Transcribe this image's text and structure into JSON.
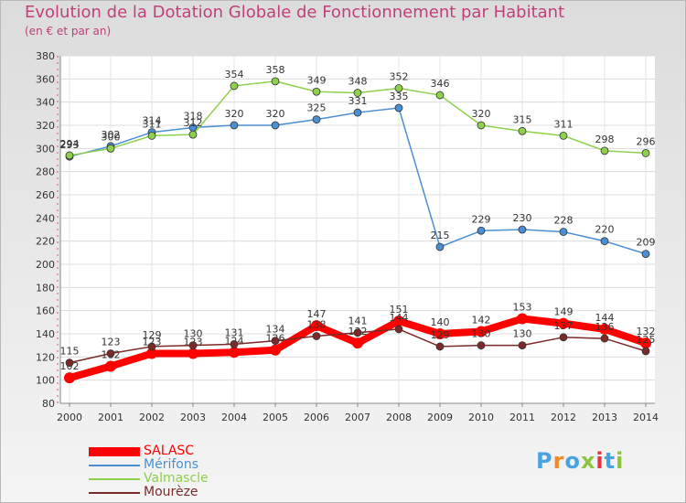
{
  "title": "Evolution de la Dotation Globale de Fonctionnement par Habitant",
  "subtitle": "(en € et par an)",
  "logo": {
    "text": "Proxiti",
    "letters": [
      "P",
      "r",
      "o",
      "x",
      "i",
      "t",
      "i"
    ],
    "colors": [
      "#4aa3e0",
      "#f08a24",
      "#4aa3e0",
      "#8bc53f",
      "#e8323c",
      "#4aa3e0",
      "#8bc53f"
    ]
  },
  "chart_data": {
    "type": "line",
    "x": [
      "2000",
      "2001",
      "2002",
      "2003",
      "2004",
      "2005",
      "2006",
      "2007",
      "2008",
      "2009",
      "2010",
      "2011",
      "2012",
      "2013",
      "2014"
    ],
    "ylim": [
      80,
      380
    ],
    "yticks": [
      80,
      100,
      120,
      140,
      160,
      180,
      200,
      220,
      240,
      260,
      280,
      300,
      320,
      340,
      360,
      380
    ],
    "grid": true,
    "legend_position": "bottom-left",
    "series": [
      {
        "name": "SALASC",
        "color": "#ff0000",
        "values": [
          102,
          112,
          123,
          123,
          124,
          126,
          147,
          132,
          151,
          140,
          142,
          153,
          149,
          144,
          132
        ]
      },
      {
        "name": "Mérifons",
        "color": "#4a8fd4",
        "values": [
          293,
          302,
          314,
          318,
          320,
          320,
          325,
          331,
          335,
          215,
          229,
          230,
          228,
          220,
          209
        ]
      },
      {
        "name": "Valmascle",
        "color": "#8ed04c",
        "values": [
          294,
          300,
          311,
          312,
          354,
          358,
          349,
          348,
          352,
          346,
          320,
          315,
          311,
          298,
          296
        ]
      },
      {
        "name": "Mourèze",
        "color": "#7b2a2a",
        "values": [
          115,
          123,
          129,
          130,
          131,
          134,
          138,
          141,
          144,
          129,
          130,
          130,
          137,
          136,
          125
        ]
      }
    ]
  }
}
